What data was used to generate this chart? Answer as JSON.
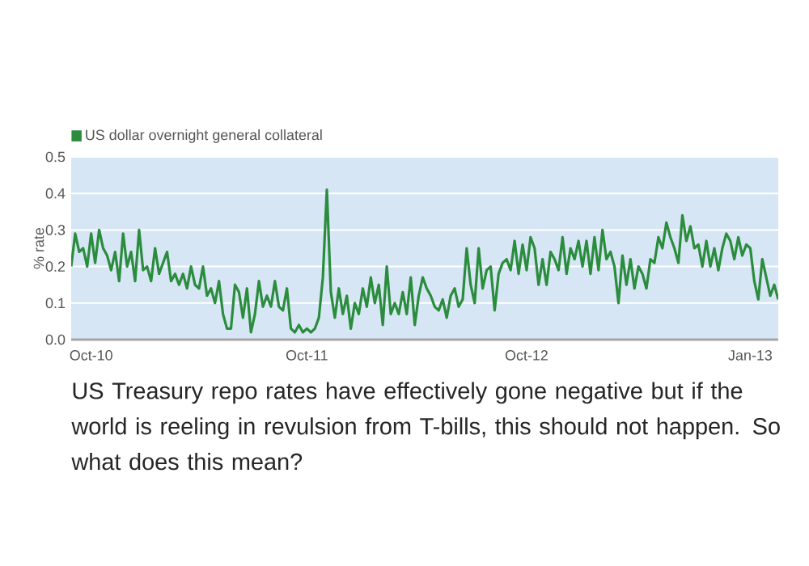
{
  "chart_data": {
    "type": "line",
    "ylabel": "% rate",
    "categories": [
      null,
      null,
      null,
      null,
      null,
      "Oct-10",
      null,
      null,
      null,
      null,
      null,
      null,
      null,
      null,
      null,
      null,
      null,
      null,
      null,
      null,
      null,
      null,
      null,
      null,
      null,
      null,
      null,
      null,
      null,
      null,
      null,
      null,
      null,
      null,
      null,
      null,
      null,
      null,
      null,
      null,
      null,
      null,
      null,
      null,
      null,
      null,
      null,
      null,
      null,
      null,
      null,
      null,
      null,
      null,
      null,
      null,
      null,
      null,
      null,
      "Oct-11",
      null,
      null,
      null,
      null,
      null,
      null,
      null,
      null,
      null,
      null,
      null,
      null,
      null,
      null,
      null,
      null,
      null,
      null,
      null,
      null,
      null,
      null,
      null,
      null,
      null,
      null,
      null,
      null,
      null,
      null,
      null,
      null,
      null,
      null,
      null,
      null,
      null,
      null,
      null,
      null,
      null,
      null,
      null,
      null,
      null,
      null,
      null,
      null,
      null,
      null,
      null,
      null,
      null,
      null,
      "Oct-12",
      null,
      null,
      null,
      null,
      null,
      null,
      null,
      null,
      null,
      null,
      null,
      null,
      null,
      null,
      null,
      null,
      null,
      null,
      null,
      null,
      null,
      null,
      null,
      null,
      null,
      null,
      null,
      null,
      null,
      null,
      null,
      null,
      null,
      null,
      null,
      null,
      null,
      null,
      null,
      null,
      null,
      null,
      null,
      null,
      null,
      null,
      null,
      null,
      null,
      null,
      null,
      null,
      null,
      null,
      null,
      "Jan-13",
      null,
      null,
      null,
      null,
      null,
      null,
      null
    ],
    "series": [
      {
        "name": "US dollar overnight general collateral",
        "color": "#2a8c3c",
        "values": [
          0.2,
          0.29,
          0.24,
          0.25,
          0.2,
          0.29,
          0.21,
          0.3,
          0.25,
          0.23,
          0.19,
          0.24,
          0.16,
          0.29,
          0.2,
          0.24,
          0.16,
          0.3,
          0.19,
          0.2,
          0.16,
          0.25,
          0.18,
          0.21,
          0.24,
          0.16,
          0.18,
          0.15,
          0.18,
          0.14,
          0.2,
          0.15,
          0.14,
          0.2,
          0.12,
          0.14,
          0.1,
          0.16,
          0.07,
          0.03,
          0.03,
          0.15,
          0.13,
          0.06,
          0.14,
          0.02,
          0.07,
          0.16,
          0.09,
          0.12,
          0.09,
          0.16,
          0.09,
          0.08,
          0.14,
          0.03,
          0.02,
          0.04,
          0.02,
          0.03,
          0.02,
          0.03,
          0.06,
          0.17,
          0.41,
          0.13,
          0.06,
          0.14,
          0.07,
          0.12,
          0.03,
          0.1,
          0.07,
          0.14,
          0.09,
          0.17,
          0.1,
          0.15,
          0.04,
          0.2,
          0.07,
          0.1,
          0.07,
          0.13,
          0.07,
          0.17,
          0.04,
          0.12,
          0.17,
          0.14,
          0.12,
          0.09,
          0.08,
          0.11,
          0.06,
          0.12,
          0.14,
          0.09,
          0.11,
          0.25,
          0.15,
          0.1,
          0.25,
          0.14,
          0.19,
          0.2,
          0.08,
          0.18,
          0.21,
          0.22,
          0.19,
          0.27,
          0.18,
          0.26,
          0.19,
          0.28,
          0.25,
          0.15,
          0.22,
          0.15,
          0.24,
          0.22,
          0.19,
          0.28,
          0.18,
          0.25,
          0.22,
          0.27,
          0.2,
          0.27,
          0.18,
          0.28,
          0.19,
          0.3,
          0.22,
          0.24,
          0.2,
          0.1,
          0.23,
          0.15,
          0.22,
          0.14,
          0.2,
          0.18,
          0.14,
          0.22,
          0.21,
          0.28,
          0.25,
          0.32,
          0.28,
          0.25,
          0.21,
          0.34,
          0.27,
          0.31,
          0.25,
          0.26,
          0.2,
          0.27,
          0.2,
          0.25,
          0.19,
          0.25,
          0.29,
          0.27,
          0.22,
          0.28,
          0.23,
          0.26,
          0.25,
          0.16,
          0.11,
          0.22,
          0.17,
          0.12,
          0.15,
          0.11
        ]
      }
    ],
    "ylim": [
      0,
      0.5
    ],
    "yticks": [
      {
        "value": 0,
        "label": "0.0"
      },
      {
        "value": 0.1,
        "label": "0.1"
      },
      {
        "value": 0.2,
        "label": "0.2"
      },
      {
        "value": 0.3,
        "label": "0.3"
      },
      {
        "value": 0.4,
        "label": "0.4"
      },
      {
        "value": 0.5,
        "label": "0.5"
      }
    ],
    "grid": "y",
    "legend": "top left",
    "marker": "none",
    "line_style": "solid",
    "annotations": [
      "US Treasury repo rates have effectively gone negative but if the world is reeling in revulsion from T-bills, this should not happen. So what does this mean?"
    ]
  }
}
